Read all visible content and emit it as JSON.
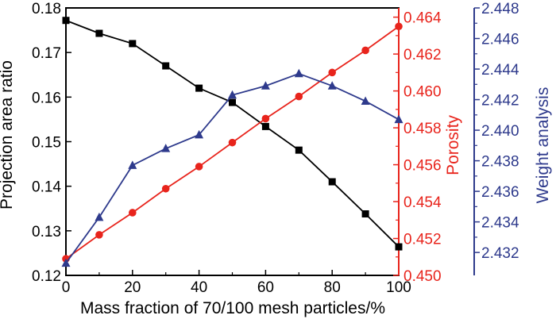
{
  "chart_data": {
    "type": "line",
    "title": "",
    "xlabel": "Mass fraction of 70/100 mesh particles/%",
    "x": [
      0,
      10,
      20,
      30,
      40,
      50,
      60,
      70,
      80,
      90,
      100
    ],
    "x_ticks": [
      "0",
      "20",
      "40",
      "60",
      "80",
      "100"
    ],
    "xlim": [
      0,
      100
    ],
    "grid": false,
    "legend": "none",
    "axes": [
      {
        "id": "left",
        "label": "Projection area ratio",
        "ylim": [
          0.12,
          0.18
        ],
        "ticks": [
          "0.12",
          "0.13",
          "0.14",
          "0.15",
          "0.16",
          "0.17",
          "0.18"
        ],
        "color": "#000000"
      },
      {
        "id": "right1",
        "label": "Porosity",
        "ylim": [
          0.45,
          0.4645
        ],
        "ticks": [
          "0.450",
          "0.452",
          "0.454",
          "0.456",
          "0.458",
          "0.460",
          "0.462",
          "0.464"
        ],
        "color": "#e8241c"
      },
      {
        "id": "right2",
        "label": "Weight analysis",
        "ylim": [
          2.4305,
          2.448
        ],
        "ticks": [
          "2.432",
          "2.434",
          "2.436",
          "2.438",
          "2.440",
          "2.442",
          "2.444",
          "2.446",
          "2.448"
        ],
        "color": "#2e3a8c"
      }
    ],
    "series": [
      {
        "axis": "left",
        "marker": "square",
        "color": "#000000",
        "values": [
          0.1772,
          0.1743,
          0.172,
          0.167,
          0.162,
          0.1588,
          0.1534,
          0.1481,
          0.141,
          0.1338,
          0.1264
        ]
      },
      {
        "axis": "right1",
        "marker": "circle",
        "color": "#e8241c",
        "values": [
          0.4509,
          0.4522,
          0.4534,
          0.4547,
          0.4559,
          0.4572,
          0.4585,
          0.4597,
          0.461,
          0.4622,
          0.4635
        ]
      },
      {
        "axis": "right2",
        "marker": "triangle",
        "color": "#2e3a8c",
        "values": [
          2.4313,
          2.4343,
          2.4377,
          2.4388,
          2.4397,
          2.4423,
          2.4429,
          2.4437,
          2.4429,
          2.4419,
          2.4407
        ]
      }
    ]
  }
}
